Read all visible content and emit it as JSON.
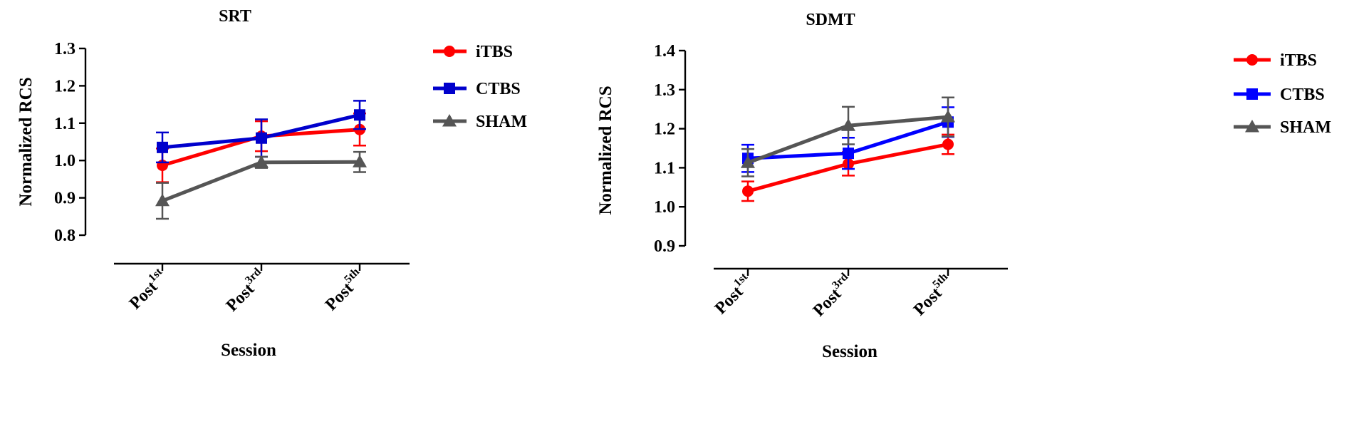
{
  "chart_data": [
    {
      "type": "line",
      "title": "SRT",
      "xlabel": "Session",
      "ylabel": "Normalized RCS",
      "categories": [
        {
          "base": "Post",
          "sup": "1st"
        },
        {
          "base": "Post",
          "sup": "3rd"
        },
        {
          "base": "Post",
          "sup": "5th"
        }
      ],
      "ylim": [
        0.8,
        1.3
      ],
      "yticks": [
        "0.8",
        "0.9",
        "1.0",
        "1.1",
        "1.2",
        "1.3"
      ],
      "grid": false,
      "legend_position": "top-right",
      "series": [
        {
          "name": "iTBS",
          "color": "#ff0000",
          "marker": "circle",
          "values": [
            0.987,
            1.065,
            1.083
          ],
          "errors": [
            0.045,
            0.04,
            0.043
          ]
        },
        {
          "name": "CTBS",
          "color": "#0000cc",
          "marker": "square",
          "values": [
            1.035,
            1.06,
            1.122
          ],
          "errors": [
            0.04,
            0.05,
            0.038
          ]
        },
        {
          "name": "SHAM",
          "color": "#555555",
          "marker": "triangle",
          "values": [
            0.892,
            0.995,
            0.996
          ],
          "errors": [
            0.048,
            0.015,
            0.027
          ]
        }
      ]
    },
    {
      "type": "line",
      "title": "SDMT",
      "xlabel": "Session",
      "ylabel": "Normalized RCS",
      "categories": [
        {
          "base": "Post",
          "sup": "1st"
        },
        {
          "base": "Post",
          "sup": "3rd"
        },
        {
          "base": "Post",
          "sup": "5th"
        }
      ],
      "ylim": [
        0.9,
        1.4
      ],
      "yticks": [
        "0.9",
        "1.0",
        "1.1",
        "1.2",
        "1.3",
        "1.4"
      ],
      "grid": false,
      "legend_position": "top-right",
      "series": [
        {
          "name": "iTBS",
          "color": "#ff0000",
          "marker": "circle",
          "values": [
            1.04,
            1.11,
            1.16
          ],
          "errors": [
            0.025,
            0.03,
            0.025
          ]
        },
        {
          "name": "CTBS",
          "color": "#0000ff",
          "marker": "square",
          "values": [
            1.124,
            1.137,
            1.217
          ],
          "errors": [
            0.035,
            0.04,
            0.038
          ]
        },
        {
          "name": "SHAM",
          "color": "#555555",
          "marker": "triangle",
          "values": [
            1.113,
            1.208,
            1.23
          ],
          "errors": [
            0.035,
            0.048,
            0.05
          ]
        }
      ]
    }
  ]
}
